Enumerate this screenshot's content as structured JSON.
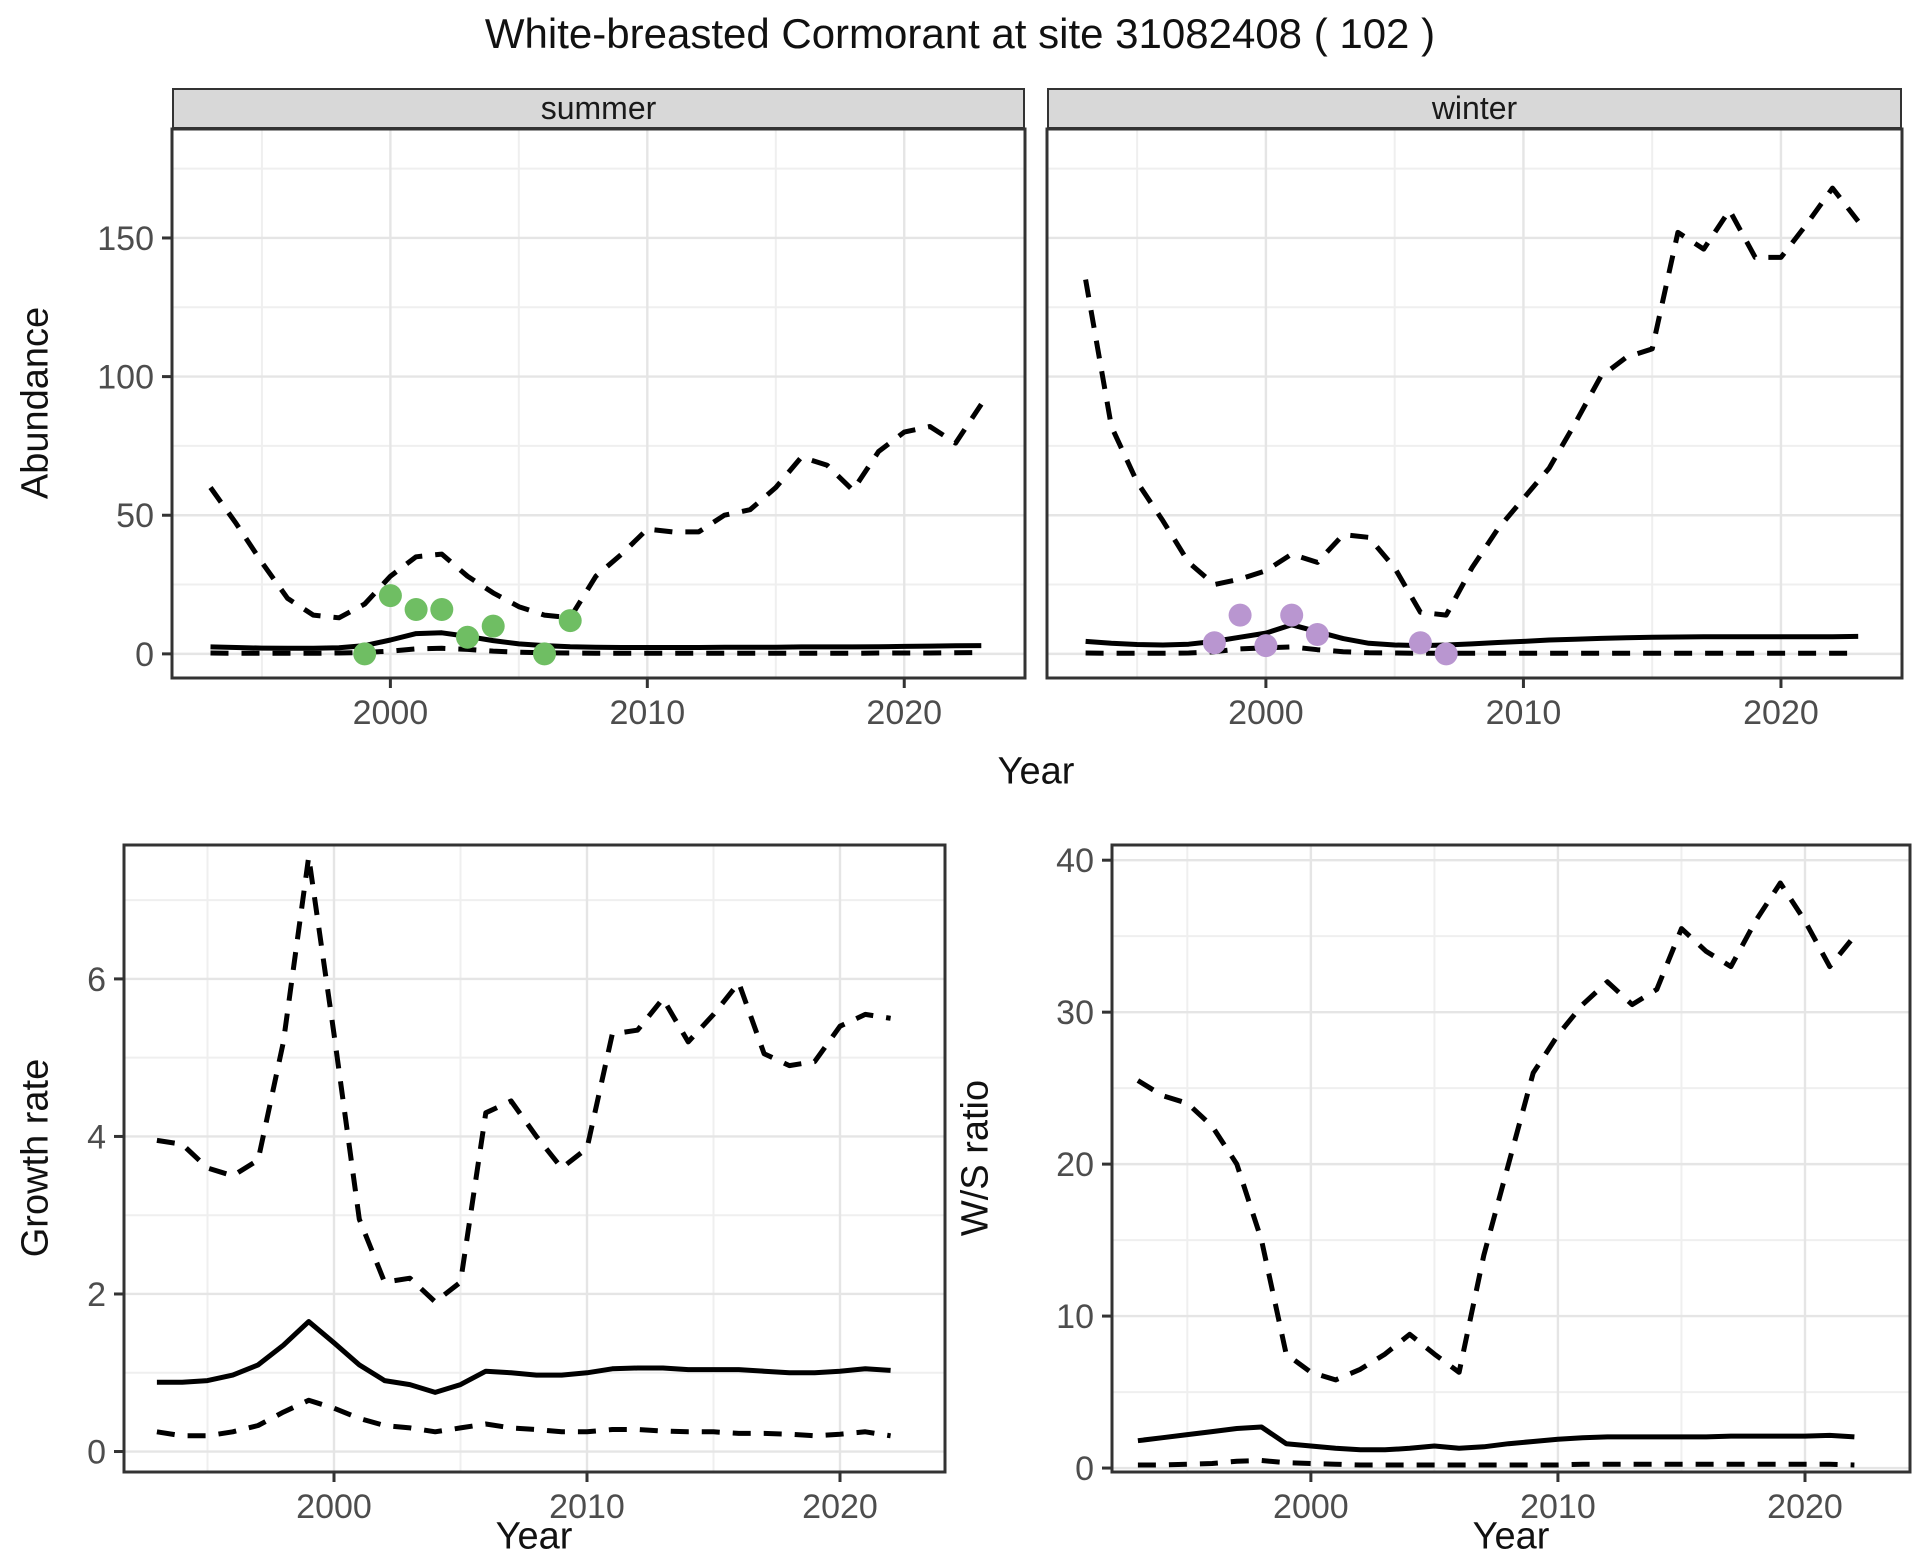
{
  "title": "White-breasted Cormorant at site 31082408 ( 102 )",
  "facets": [
    {
      "label": "summer"
    },
    {
      "label": "winter"
    }
  ],
  "axis_titles": {
    "abundance": "Abundance",
    "year_top": "Year",
    "growth_rate": "Growth rate",
    "ws_ratio": "W/S ratio",
    "year_bottom_left": "Year",
    "year_bottom_right": "Year"
  },
  "colors": {
    "summer_points": "#6FBE63",
    "winter_points": "#B996D0",
    "line": "#000000",
    "strip_fill": "#d8d8d8",
    "panel_border": "#333333",
    "grid_major": "#e5e5e5",
    "grid_minor": "#efefef",
    "tick_text": "#4d4d4d"
  },
  "chart_data": [
    {
      "id": "abundance_summer",
      "type": "line",
      "facet": "summer",
      "title": "summer",
      "xlabel": "Year",
      "ylabel": "Abundance",
      "legend": "none",
      "grid": true,
      "xlim": [
        1991.5,
        2024.7
      ],
      "ylim": [
        -8.7,
        189.3
      ],
      "xticks": [
        2000,
        2010,
        2020
      ],
      "xticks_minor": [
        1995,
        2005,
        2015
      ],
      "yticks": [
        0,
        50,
        100,
        150
      ],
      "yticks_minor": [
        25,
        75,
        125,
        175
      ],
      "y_axis": true,
      "x": [
        1993,
        1994,
        1995,
        1996,
        1997,
        1998,
        1999,
        2000,
        2001,
        2002,
        2003,
        2004,
        2005,
        2006,
        2007,
        2008,
        2009,
        2010,
        2011,
        2012,
        2013,
        2014,
        2015,
        2016,
        2017,
        2018,
        2019,
        2020,
        2021,
        2022,
        2023
      ],
      "series": [
        {
          "name": "upper-ci",
          "style": "dashed",
          "values": [
            60,
            47,
            33,
            20,
            14,
            13,
            18,
            28,
            35,
            36,
            28,
            22,
            17,
            14,
            13,
            28,
            36,
            45,
            44,
            44,
            50,
            52,
            60,
            71,
            68,
            59,
            73,
            80,
            82,
            76,
            90
          ]
        },
        {
          "name": "median",
          "style": "solid",
          "values": [
            2.5,
            2.3,
            2.1,
            2.0,
            2.0,
            2.2,
            3.0,
            5.0,
            7.3,
            7.6,
            6.3,
            4.8,
            3.6,
            3.0,
            2.6,
            2.4,
            2.3,
            2.3,
            2.3,
            2.3,
            2.4,
            2.4,
            2.4,
            2.5,
            2.5,
            2.5,
            2.6,
            2.7,
            2.8,
            2.9,
            3.0
          ]
        },
        {
          "name": "lower-ci",
          "style": "dashed",
          "values": [
            0.3,
            0.2,
            0.2,
            0.2,
            0.2,
            0.3,
            0.5,
            1.0,
            1.8,
            2.0,
            1.6,
            1.0,
            0.6,
            0.4,
            0.3,
            0.2,
            0.2,
            0.2,
            0.2,
            0.2,
            0.2,
            0.2,
            0.2,
            0.2,
            0.2,
            0.2,
            0.3,
            0.3,
            0.3,
            0.4,
            0.5
          ]
        }
      ],
      "points": {
        "name": "observed-counts",
        "color": "#6FBE63",
        "xy": [
          [
            1999,
            0
          ],
          [
            2000,
            21
          ],
          [
            2001,
            16
          ],
          [
            2002,
            16
          ],
          [
            2003,
            6
          ],
          [
            2004,
            10
          ],
          [
            2006,
            0
          ],
          [
            2007,
            12
          ]
        ]
      }
    },
    {
      "id": "abundance_winter",
      "type": "line",
      "facet": "winter",
      "title": "winter",
      "xlabel": "Year",
      "ylabel": "Abundance",
      "legend": "none",
      "grid": true,
      "xlim": [
        1991.5,
        2024.7
      ],
      "ylim": [
        -8.7,
        189.3
      ],
      "xticks": [
        2000,
        2010,
        2020
      ],
      "xticks_minor": [
        1995,
        2005,
        2015
      ],
      "yticks": [
        0,
        50,
        100,
        150
      ],
      "yticks_minor": [
        25,
        75,
        125,
        175
      ],
      "y_axis": false,
      "x": [
        1993,
        1994,
        1995,
        1996,
        1997,
        1998,
        1999,
        2000,
        2001,
        2002,
        2003,
        2004,
        2005,
        2006,
        2007,
        2008,
        2009,
        2010,
        2011,
        2012,
        2013,
        2014,
        2015,
        2016,
        2017,
        2018,
        2019,
        2020,
        2021,
        2022,
        2023
      ],
      "series": [
        {
          "name": "upper-ci",
          "style": "dashed",
          "values": [
            135,
            82,
            62,
            48,
            33,
            25,
            27,
            30,
            36,
            33,
            43,
            42,
            31,
            15,
            14,
            31,
            45,
            56,
            67,
            83,
            100,
            107,
            110,
            152,
            146,
            160,
            143,
            143,
            155,
            168,
            156
          ]
        },
        {
          "name": "median",
          "style": "solid",
          "values": [
            4.5,
            3.8,
            3.4,
            3.2,
            3.5,
            4.5,
            6.0,
            7.5,
            10.5,
            8.0,
            5.5,
            3.8,
            3.2,
            3.0,
            3.2,
            3.6,
            4.1,
            4.5,
            5.0,
            5.3,
            5.6,
            5.8,
            6.0,
            6.1,
            6.2,
            6.2,
            6.2,
            6.2,
            6.2,
            6.2,
            6.3
          ]
        },
        {
          "name": "lower-ci",
          "style": "dashed",
          "values": [
            0.3,
            0.2,
            0.2,
            0.2,
            0.3,
            0.8,
            1.8,
            2.2,
            2.5,
            1.5,
            0.8,
            0.4,
            0.3,
            0.2,
            0.2,
            0.2,
            0.2,
            0.2,
            0.2,
            0.2,
            0.2,
            0.2,
            0.2,
            0.2,
            0.2,
            0.2,
            0.2,
            0.2,
            0.2,
            0.2,
            0.2
          ]
        }
      ],
      "points": {
        "name": "observed-counts",
        "color": "#B996D0",
        "xy": [
          [
            1998,
            4
          ],
          [
            1999,
            14
          ],
          [
            2000,
            3
          ],
          [
            2001,
            14
          ],
          [
            2002,
            7
          ],
          [
            2006,
            4
          ],
          [
            2007,
            0
          ]
        ]
      }
    },
    {
      "id": "growth_rate",
      "type": "line",
      "facet": null,
      "title": "",
      "xlabel": "Year",
      "ylabel": "Growth rate",
      "legend": "none",
      "grid": true,
      "xlim": [
        1991.7,
        2024.15
      ],
      "ylim": [
        -0.26,
        7.7
      ],
      "xticks": [
        2000,
        2010,
        2020
      ],
      "xticks_minor": [
        1995,
        2005,
        2015
      ],
      "yticks": [
        0,
        2,
        4,
        6
      ],
      "yticks_minor": [
        1,
        3,
        5,
        7
      ],
      "y_axis": true,
      "x": [
        1993,
        1994,
        1995,
        1996,
        1997,
        1998,
        1999,
        2000,
        2001,
        2002,
        2003,
        2004,
        2005,
        2006,
        2007,
        2008,
        2009,
        2010,
        2011,
        2012,
        2013,
        2014,
        2015,
        2016,
        2017,
        2018,
        2019,
        2020,
        2021,
        2022
      ],
      "series": [
        {
          "name": "upper-ci",
          "style": "dashed",
          "values": [
            3.95,
            3.9,
            3.6,
            3.5,
            3.7,
            5.2,
            7.55,
            5.3,
            2.95,
            2.15,
            2.2,
            1.9,
            2.15,
            4.3,
            4.45,
            4.0,
            3.6,
            3.85,
            5.3,
            5.35,
            5.75,
            5.2,
            5.55,
            5.95,
            5.05,
            4.9,
            4.95,
            5.4,
            5.55,
            5.5
          ]
        },
        {
          "name": "median",
          "style": "solid",
          "values": [
            0.88,
            0.88,
            0.9,
            0.97,
            1.1,
            1.35,
            1.65,
            1.38,
            1.1,
            0.9,
            0.85,
            0.75,
            0.85,
            1.02,
            1.0,
            0.97,
            0.97,
            1.0,
            1.05,
            1.06,
            1.06,
            1.04,
            1.04,
            1.04,
            1.02,
            1.0,
            1.0,
            1.02,
            1.05,
            1.03
          ]
        },
        {
          "name": "lower-ci",
          "style": "dashed",
          "values": [
            0.25,
            0.2,
            0.2,
            0.25,
            0.33,
            0.5,
            0.65,
            0.55,
            0.42,
            0.33,
            0.3,
            0.25,
            0.3,
            0.35,
            0.3,
            0.28,
            0.25,
            0.25,
            0.28,
            0.28,
            0.26,
            0.25,
            0.25,
            0.23,
            0.23,
            0.22,
            0.2,
            0.22,
            0.25,
            0.2
          ]
        }
      ],
      "points": null
    },
    {
      "id": "ws_ratio",
      "type": "line",
      "facet": null,
      "title": "",
      "xlabel": "Year",
      "ylabel": "W/S ratio",
      "legend": "none",
      "grid": true,
      "xlim": [
        1991.95,
        2024.25
      ],
      "ylim": [
        -0.26,
        41.0
      ],
      "xticks": [
        2000,
        2010,
        2020
      ],
      "xticks_minor": [
        1995,
        2005,
        2015
      ],
      "yticks": [
        0,
        10,
        20,
        30,
        40
      ],
      "yticks_minor": [
        5,
        15,
        25,
        35
      ],
      "y_axis": true,
      "x": [
        1993,
        1994,
        1995,
        1996,
        1997,
        1998,
        1999,
        2000,
        2001,
        2002,
        2003,
        2004,
        2005,
        2006,
        2007,
        2008,
        2009,
        2010,
        2011,
        2012,
        2013,
        2014,
        2015,
        2016,
        2017,
        2018,
        2019,
        2020,
        2021,
        2022
      ],
      "series": [
        {
          "name": "upper-ci",
          "style": "dashed",
          "values": [
            25.5,
            24.5,
            24,
            22.5,
            20,
            15,
            7.5,
            6.3,
            5.8,
            6.5,
            7.5,
            8.8,
            7.5,
            6.3,
            14,
            20,
            26,
            28.5,
            30.5,
            32,
            30.5,
            31.5,
            35.5,
            34,
            33,
            36,
            38.5,
            36,
            33,
            35
          ]
        },
        {
          "name": "median",
          "style": "solid",
          "values": [
            1.8,
            2.0,
            2.2,
            2.4,
            2.6,
            2.7,
            1.6,
            1.45,
            1.3,
            1.2,
            1.2,
            1.3,
            1.45,
            1.3,
            1.4,
            1.6,
            1.75,
            1.9,
            2.0,
            2.05,
            2.05,
            2.05,
            2.05,
            2.05,
            2.1,
            2.1,
            2.1,
            2.1,
            2.15,
            2.05
          ]
        },
        {
          "name": "lower-ci",
          "style": "dashed",
          "values": [
            0.2,
            0.2,
            0.25,
            0.3,
            0.45,
            0.5,
            0.35,
            0.3,
            0.25,
            0.2,
            0.2,
            0.2,
            0.2,
            0.2,
            0.2,
            0.2,
            0.2,
            0.2,
            0.25,
            0.25,
            0.25,
            0.25,
            0.25,
            0.25,
            0.25,
            0.25,
            0.25,
            0.25,
            0.25,
            0.2
          ]
        }
      ],
      "points": null
    }
  ]
}
